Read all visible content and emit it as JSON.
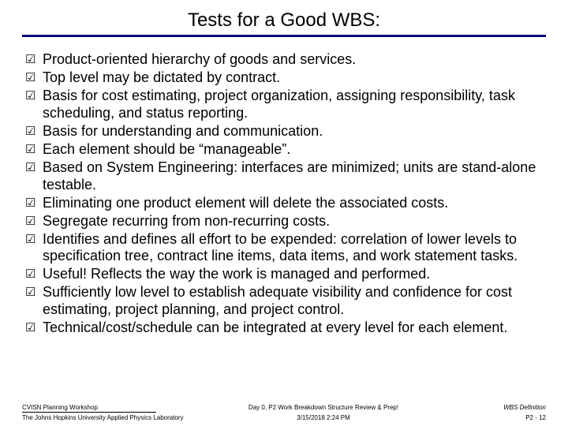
{
  "title": "Tests for a Good WBS:",
  "accent_color": "#000080",
  "background_color": "#ffffff",
  "text_color": "#000000",
  "title_fontsize": 24,
  "body_fontsize": 18,
  "footer_fontsize": 8,
  "bullet_glyph": "☑",
  "items": [
    "Product-oriented hierarchy of goods and services.",
    "Top level may be dictated by contract.",
    "Basis for cost estimating, project organization, assigning responsibility, task scheduling, and status reporting.",
    "Basis for understanding and communication.",
    "Each element should be “manageable”.",
    "Based on System Engineering: interfaces are minimized; units are stand-alone testable.",
    "Eliminating one product element will delete the associated costs.",
    "Segregate recurring from non-recurring costs.",
    "Identifies and defines all effort to be expended: correlation of lower levels to specification tree, contract line items, data items, and work statement tasks.",
    "Useful!  Reflects the way the work is managed and performed.",
    "Sufficiently low level to establish adequate visibility and confidence for cost estimating, project planning, and project control.",
    "Technical/cost/schedule can be integrated at every level for each element."
  ],
  "footer": {
    "left1": "CVISN Planning Workshop",
    "left2": "The Johns Hopkins University Applied Physics Laboratory",
    "center1": "Day 0, P2 Work Breakdown Structure Review & Prep!",
    "center2": "3/15/2018 2:24 PM",
    "right1": "WBS Definition",
    "right2": "P2  - 12"
  }
}
